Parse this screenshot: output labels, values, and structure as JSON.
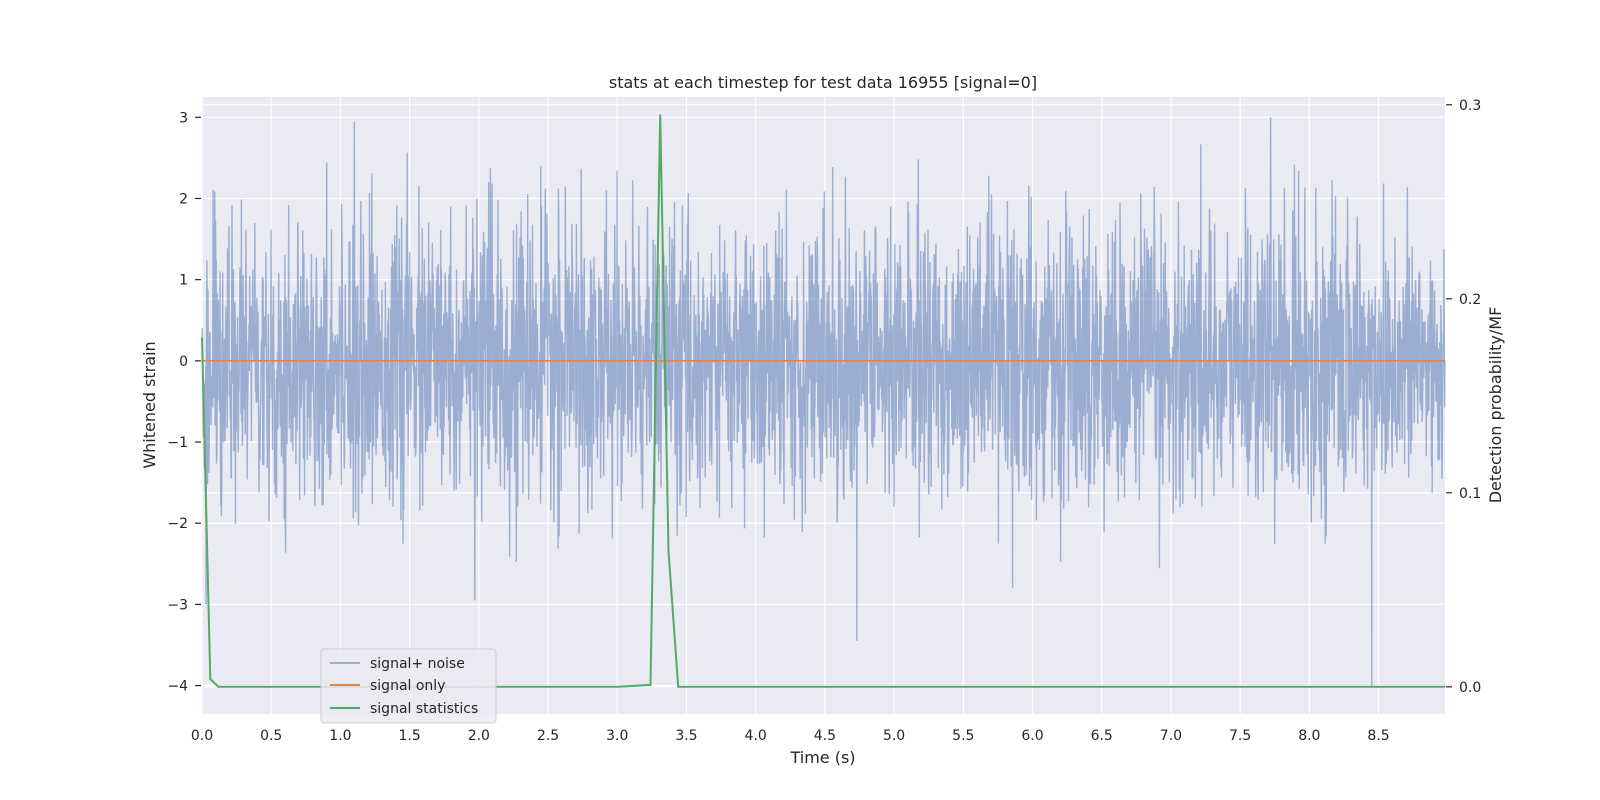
{
  "chart_data": {
    "type": "line",
    "title": "stats at each timestep for test data 16955 [signal=0]",
    "xlabel": "Time (s)",
    "ylabel": "Whitened strain",
    "y2label": "Detection probability/MF",
    "xlim": [
      0.0,
      8.98
    ],
    "ylim": [
      -4.35,
      3.25
    ],
    "y2lim": [
      -0.014,
      0.304
    ],
    "xticks": [
      "0.0",
      "0.5",
      "1.0",
      "1.5",
      "2.0",
      "2.5",
      "3.0",
      "3.5",
      "4.0",
      "4.5",
      "5.0",
      "5.5",
      "6.0",
      "6.5",
      "7.0",
      "7.5",
      "8.0",
      "8.5"
    ],
    "yticks": [
      "−4",
      "−3",
      "−2",
      "−1",
      "0",
      "1",
      "2",
      "3"
    ],
    "y2ticks": [
      "0.0",
      "0.1",
      "0.2",
      "0.3"
    ],
    "grid": true,
    "legend_placement": "lower-left",
    "colors": {
      "background": "#eaeaf2",
      "grid": "#ffffff",
      "noise": "#4c72b0",
      "signal_only": "#dd8452",
      "statistics": "#55a868"
    },
    "series": [
      {
        "name": "signal+ noise",
        "axis": "left",
        "description_type": "noisy",
        "x_range": [
          0.0,
          8.98
        ],
        "typical_band": [
          -1.6,
          1.6
        ],
        "notable_extremes": [
          {
            "x": 1.1,
            "y": 2.95
          },
          {
            "x": 7.72,
            "y": 3.0
          },
          {
            "x": 4.73,
            "y": -3.45
          },
          {
            "x": 8.45,
            "y": -4.0
          },
          {
            "x": 0.03,
            "y": -3.0
          },
          {
            "x": 1.97,
            "y": -2.95
          }
        ]
      },
      {
        "name": "signal only",
        "axis": "left",
        "x": [
          0.0,
          8.98
        ],
        "y": [
          0.0,
          0.0
        ]
      },
      {
        "name": "signal statistics",
        "axis": "right",
        "x": [
          0.0,
          0.06,
          0.12,
          3.0,
          3.24,
          3.31,
          3.37,
          3.44,
          4.0,
          8.98
        ],
        "y": [
          0.18,
          0.004,
          0.0,
          0.0,
          0.001,
          0.295,
          0.07,
          0.0,
          0.0,
          0.0
        ]
      }
    ]
  }
}
